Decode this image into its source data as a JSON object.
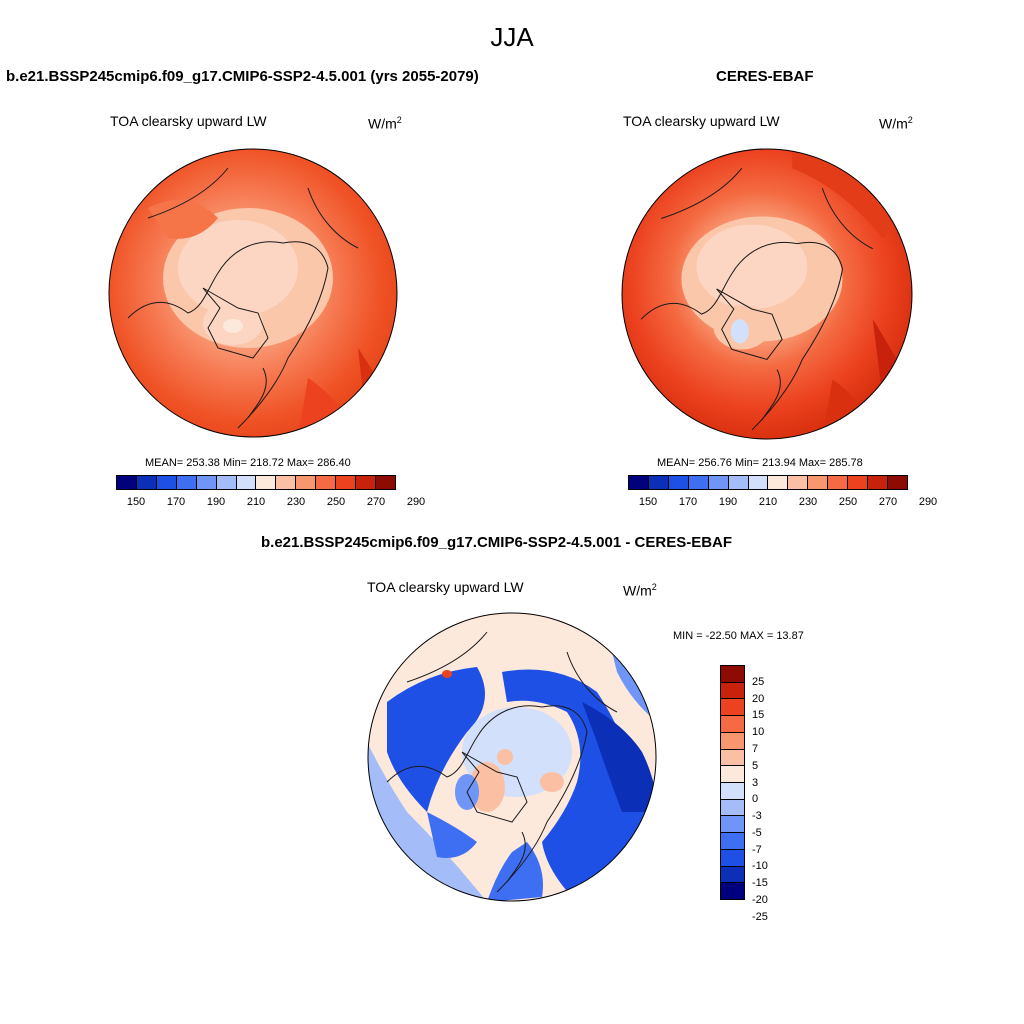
{
  "figure": {
    "title": "JJA"
  },
  "units": {
    "base": "W/m",
    "exp": "2"
  },
  "colors": {
    "abs_scale": [
      "#00007f",
      "#0b2fb7",
      "#1f50e6",
      "#3e6ff3",
      "#6f95f7",
      "#a4bdf9",
      "#d3e0fb",
      "#fde8dc",
      "#fbc0a3",
      "#f8966f",
      "#f56a43",
      "#ec4220",
      "#c9220c",
      "#8e0b03"
    ],
    "diff_scale": [
      "#8e0b03",
      "#c9220c",
      "#ec4220",
      "#f56a43",
      "#f8966f",
      "#fbc0a3",
      "#fde8dc",
      "#d3e0fb",
      "#a4bdf9",
      "#6f95f7",
      "#3e6ff3",
      "#1f50e6",
      "#0b2fb7",
      "#00007f"
    ],
    "coastline": "#1a1a1a"
  },
  "panels": {
    "model": {
      "title": "b.e21.BSSP245cmip6.f09_g17.CMIP6-SSP2-4.5.001 (yrs 2055-2079)",
      "var_label": "TOA clearsky upward LW",
      "stats": "MEAN= 253.38  Min= 218.72  Max= 286.40"
    },
    "obs": {
      "title": "CERES-EBAF",
      "var_label": "TOA clearsky upward LW",
      "stats": "MEAN= 256.76  Min= 213.94  Max= 285.78"
    },
    "diff": {
      "title": "b.e21.BSSP245cmip6.f09_g17.CMIP6-SSP2-4.5.001 - CERES-EBAF",
      "var_label": "TOA clearsky upward LW",
      "stats": "MIN = -22.50 MAX =  13.87"
    }
  },
  "colorbar_abs": {
    "ticks": [
      "150",
      "170",
      "190",
      "210",
      "230",
      "250",
      "270",
      "290"
    ]
  },
  "colorbar_diff": {
    "ticks": [
      "25",
      "20",
      "15",
      "10",
      "7",
      "5",
      "3",
      "0",
      "-3",
      "-5",
      "-7",
      "-10",
      "-15",
      "-20",
      "-25"
    ]
  }
}
